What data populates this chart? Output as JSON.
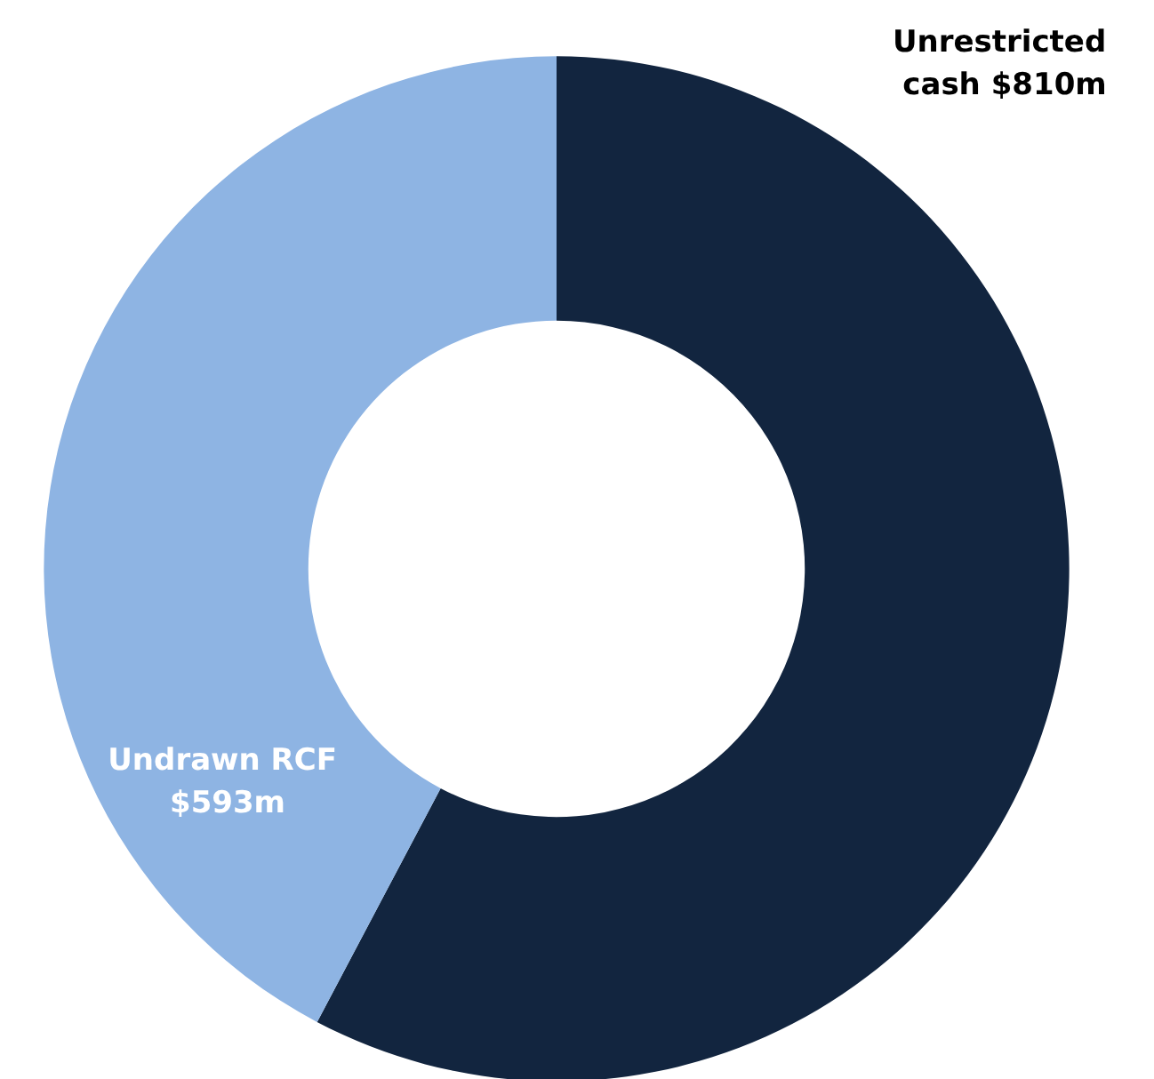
{
  "chart_data": {
    "type": "donut",
    "categories": [
      "Unrestricted cash",
      "Undrawn RCF"
    ],
    "values": [
      810,
      593
    ],
    "value_labels": [
      "$810m",
      "$593m"
    ],
    "colors": [
      "#12253f",
      "#8eb4e3"
    ],
    "legend": false
  }
}
